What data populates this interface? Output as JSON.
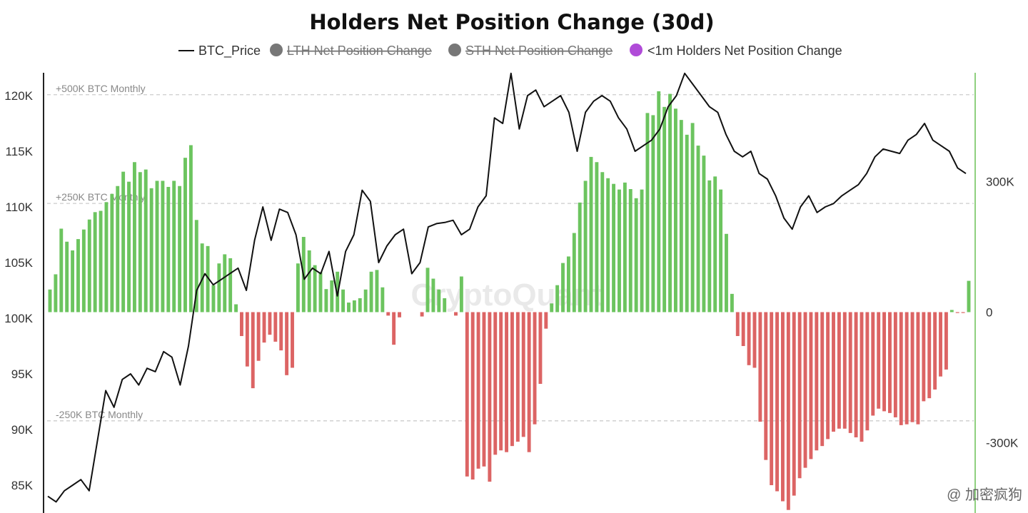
{
  "chart_data": {
    "type": "bar+line",
    "title": "Holders Net Position Change (30d)",
    "legend": [
      {
        "name": "BTC_Price",
        "marker": "line",
        "color": "#111111",
        "active": true
      },
      {
        "name": "LTH Net Position Change",
        "marker": "dot",
        "color": "#777777",
        "active": false
      },
      {
        "name": "STH Net Position Change",
        "marker": "dot",
        "color": "#777777",
        "active": false
      },
      {
        "name": "<1m Holders Net Position Change",
        "marker": "dot",
        "color": "#b04bd8",
        "active": true
      }
    ],
    "left_axis": {
      "ticks": [
        120000,
        115000,
        110000,
        105000,
        100000,
        95000,
        90000,
        85000
      ],
      "tick_labels": [
        "120K",
        "115K",
        "110K",
        "105K",
        "100K",
        "95K",
        "90K",
        "85K"
      ],
      "range": [
        82500,
        122500
      ]
    },
    "right_axis": {
      "ticks": [
        300000,
        0,
        -300000
      ],
      "tick_labels": [
        "300K",
        "0",
        "-300K"
      ],
      "range": [
        -462000,
        562000
      ]
    },
    "reference_lines": [
      {
        "value": 500000,
        "label": "+500K BTC Monthly"
      },
      {
        "value": 250000,
        "label": "+250K BTC Monthly"
      },
      {
        "value": -250000,
        "label": "-250K BTC Monthly"
      }
    ],
    "colors": {
      "positive": "#6cc45f",
      "negative": "#dc6464",
      "price": "#111111",
      "ref": "#cccccc",
      "right_axis": "#8fd07f"
    },
    "net_position_change": [
      52000,
      87000,
      192000,
      162000,
      142000,
      168000,
      190000,
      213000,
      230000,
      233000,
      253000,
      272000,
      290000,
      323000,
      300000,
      345000,
      322000,
      328000,
      285000,
      302000,
      302000,
      288000,
      302000,
      290000,
      355000,
      384000,
      212000,
      158000,
      152000,
      62000,
      112000,
      133000,
      124000,
      18000,
      -55000,
      -125000,
      -175000,
      -112000,
      -70000,
      -52000,
      -68000,
      -88000,
      -145000,
      -128000,
      112000,
      173000,
      142000,
      108000,
      92000,
      53000,
      73000,
      93000,
      52000,
      22000,
      27000,
      32000,
      52000,
      93000,
      97000,
      57000,
      -8000,
      -75000,
      -12000,
      0,
      0,
      0,
      -10000,
      102000,
      77000,
      52000,
      32000,
      0,
      -8000,
      82000,
      -378000,
      -385000,
      -360000,
      -355000,
      -390000,
      -328000,
      -318000,
      -322000,
      -308000,
      -298000,
      -287000,
      -322000,
      -258000,
      -165000,
      -38000,
      20000,
      62000,
      113000,
      128000,
      182000,
      252000,
      302000,
      357000,
      345000,
      322000,
      308000,
      295000,
      282000,
      298000,
      283000,
      262000,
      282000,
      458000,
      453000,
      508000,
      472000,
      502000,
      468000,
      442000,
      408000,
      435000,
      383000,
      360000,
      303000,
      312000,
      282000,
      180000,
      42000,
      -55000,
      -78000,
      -122000,
      -128000,
      -252000,
      -340000,
      -398000,
      -412000,
      -435000,
      -455000,
      -422000,
      -382000,
      -358000,
      -338000,
      -318000,
      -308000,
      -292000,
      -275000,
      -268000,
      -268000,
      -278000,
      -288000,
      -298000,
      -272000,
      -238000,
      -222000,
      -228000,
      -232000,
      -242000,
      -260000,
      -258000,
      -253000,
      -258000,
      -205000,
      -198000,
      -178000,
      -148000,
      -132000,
      5000,
      -2000,
      -2000,
      72000
    ],
    "btc_price": [
      84000,
      83500,
      84500,
      85000,
      85500,
      84500,
      89000,
      93500,
      92000,
      94500,
      95000,
      94000,
      95500,
      95200,
      97000,
      96500,
      94000,
      97500,
      102500,
      104000,
      103000,
      103500,
      104000,
      104500,
      102500,
      107000,
      110000,
      107000,
      109800,
      109500,
      107500,
      103500,
      104500,
      104000,
      106000,
      102000,
      106000,
      107500,
      111500,
      110500,
      105000,
      106500,
      107500,
      108000,
      104000,
      105000,
      108200,
      108500,
      108600,
      108800,
      107500,
      108000,
      110000,
      111000,
      118000,
      117500,
      122000,
      117000,
      120000,
      120500,
      119000,
      119500,
      120000,
      118500,
      115000,
      118500,
      119500,
      120000,
      119500,
      118000,
      117000,
      115000,
      115500,
      116000,
      117000,
      119000,
      120000,
      122000,
      121000,
      120000,
      119000,
      118500,
      116500,
      115000,
      114500,
      115000,
      113000,
      112500,
      111000,
      109000,
      108000,
      110000,
      111000,
      109500,
      110000,
      110300,
      111000,
      111500,
      112000,
      113000,
      114500,
      115200,
      115000,
      114800,
      116000,
      116500,
      117500,
      116000,
      115500,
      115000,
      113500,
      113000
    ]
  },
  "watermark": "CryptoQuant",
  "credit": "@ 加密疯狗"
}
